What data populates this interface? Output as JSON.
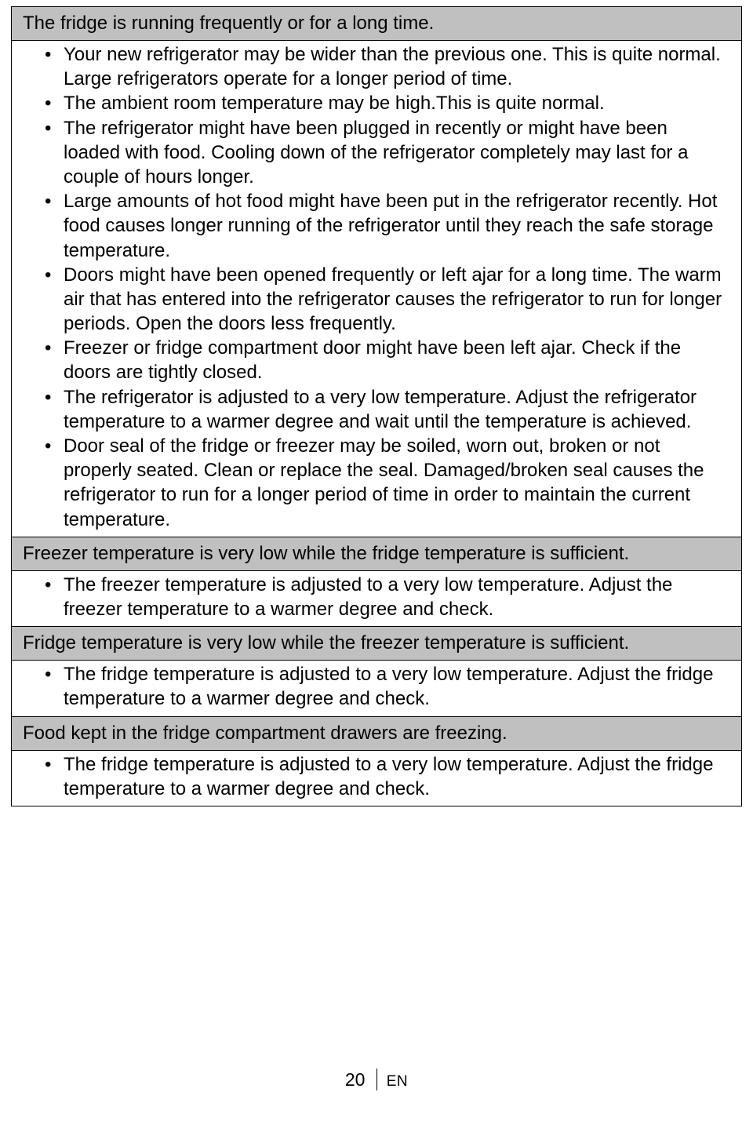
{
  "sections": [
    {
      "header": "The fridge is running frequently or for a long time.",
      "bullets": [
        "Your new refrigerator may be wider than the previous one. This is quite normal. Large refrigerators operate for a longer period of time.",
        "The ambient room temperature may be high.This is quite normal.",
        "The refrigerator might have been plugged in recently or might have been loaded with food. Cooling down of the refrigerator completely may last for a couple of hours longer.",
        "Large amounts of hot food might have been put in the refrigerator recently. Hot food causes longer running of the refrigerator until they reach the safe storage temperature.",
        "Doors might have been opened frequently or left ajar for a long time. The warm air that has entered into the refrigerator causes the refrigerator to run for longer periods. Open the doors less frequently.",
        "Freezer or fridge compartment door might have been left ajar. Check if the doors are tightly closed.",
        "The refrigerator is adjusted to a very low temperature. Adjust the refrigerator temperature to a warmer degree and wait until the temperature is achieved.",
        "Door seal of the fridge or freezer may be soiled, worn out, broken or not properly seated. Clean or replace the seal. Damaged/broken seal causes the refrigerator to run for a longer period of time in order to maintain the current temperature."
      ]
    },
    {
      "header": "Freezer temperature is very low while the fridge temperature is sufficient.",
      "bullets": [
        "The freezer temperature is adjusted to a very low temperature. Adjust the freezer temperature to a warmer degree and check."
      ]
    },
    {
      "header": "Fridge temperature is very low while the freezer temperature is sufficient.",
      "bullets": [
        "The fridge temperature is adjusted to a very low temperature. Adjust the fridge temperature to a warmer degree and check."
      ]
    },
    {
      "header": "Food kept in the fridge compartment drawers are freezing.",
      "bullets": [
        "The fridge temperature is adjusted to a very low temperature. Adjust the fridge temperature to a warmer degree and check."
      ]
    }
  ],
  "footer": {
    "page": "20",
    "lang": "EN"
  }
}
